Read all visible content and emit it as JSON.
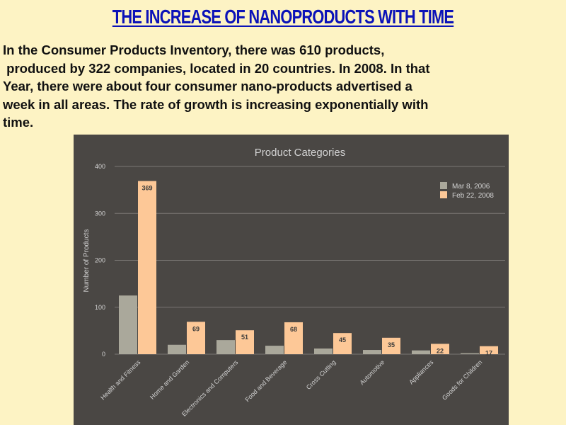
{
  "slide": {
    "title": "THE INCREASE OF NANOPRODUCTS WITH TIME",
    "intro": "In the Consumer Products Inventory, there was 610 products,\n produced by 322 companies, located in 20 countries. In 2008. In that\nYear, there were about four consumer nano-products advertised a\nweek in all areas. The rate of growth is increasing exponentially with\ntime."
  },
  "chart_data": {
    "type": "bar",
    "title": "Product Categories",
    "xlabel": "",
    "ylabel": "Number of Products",
    "ylim": [
      0,
      400
    ],
    "yticks": [
      0,
      100,
      200,
      300,
      400
    ],
    "grid": true,
    "legend_position": "top-right",
    "categories": [
      "Health and Fitness",
      "Home and Garden",
      "Electronics and Computers",
      "Food and Beverage",
      "Cross Cutting",
      "Automotive",
      "Appliances",
      "Goods for Children"
    ],
    "series": [
      {
        "name": "Mar 8, 2006",
        "color": "#aaa89b",
        "values": [
          125,
          20,
          30,
          18,
          12,
          9,
          8,
          2
        ],
        "labeled": false
      },
      {
        "name": "Feb 22, 2008",
        "color": "#fdc897",
        "values": [
          369,
          69,
          51,
          68,
          45,
          35,
          22,
          17
        ],
        "labeled": true
      }
    ],
    "colors": {
      "background": "#4a4744",
      "text": "#d2d2d2",
      "grid": "#7a7773",
      "label_text": "#3a3a3a"
    }
  }
}
